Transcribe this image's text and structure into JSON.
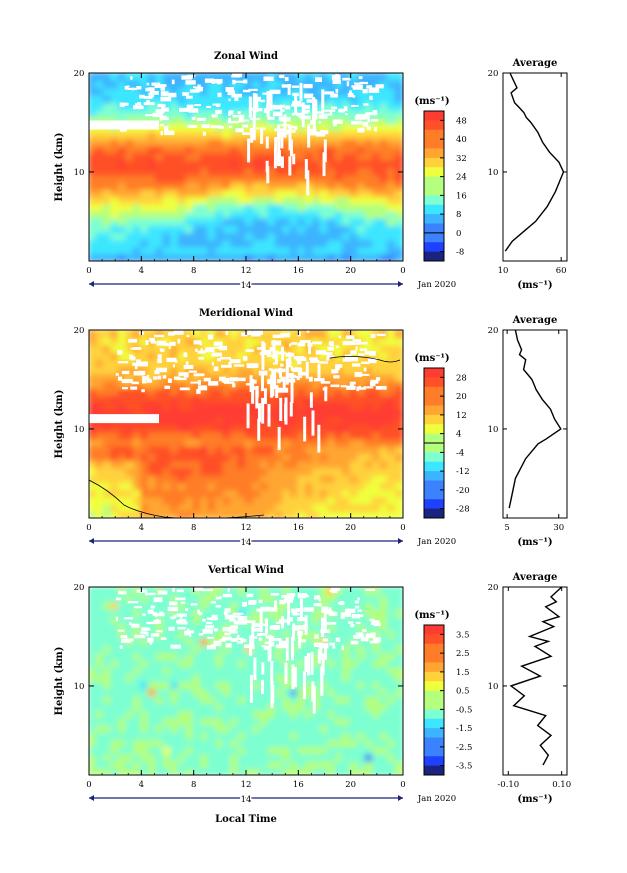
{
  "colors": {
    "palette": [
      "#1a237e",
      "#1e40ff",
      "#3c82ff",
      "#3cb4ff",
      "#3ce6ff",
      "#7dffd2",
      "#b4ff7d",
      "#f0ff3c",
      "#ffd23c",
      "#ffa532",
      "#ff7d28",
      "#ff5028",
      "#ff3c32"
    ],
    "missing": "#ffffff",
    "line": "#000000",
    "timeline": "#1a237e"
  },
  "common": {
    "ylabel": "Height (km)",
    "yticks": [
      "20",
      "10"
    ],
    "xticks": [
      "0",
      "4",
      "8",
      "12",
      "16",
      "20",
      "0"
    ],
    "day_label": "14",
    "date_label": "Jan 2020",
    "unit_label": "(ms⁻¹)",
    "avg_title": "Average",
    "avg_xunit": "(ms⁻¹)",
    "xlabel": "Local Time"
  },
  "chart_data": [
    {
      "type": "heatmap",
      "title": "Zonal Wind",
      "xlabel": "",
      "ylabel": "Height (km)",
      "xlim": [
        0,
        24
      ],
      "ylim": [
        1,
        20
      ],
      "colorbar_ticks": [
        "48",
        "40",
        "32",
        "24",
        "16",
        "8",
        "0",
        "-8"
      ],
      "colorbar_range": [
        -12,
        52
      ],
      "profile": {
        "type": "line",
        "title": "Average",
        "xlim": [
          10,
          65
        ],
        "xticks": [
          "10",
          "60"
        ],
        "x": [
          12,
          18,
          28,
          38,
          48,
          55,
          62,
          58,
          50,
          44,
          40,
          34,
          30,
          28,
          24,
          20,
          17,
          22,
          18,
          16
        ],
        "y": [
          2,
          3,
          4,
          5,
          6.5,
          8,
          10,
          11,
          12,
          13,
          14,
          15,
          15.5,
          16,
          16.5,
          17,
          18,
          18.5,
          19.5,
          20
        ]
      }
    },
    {
      "type": "heatmap",
      "title": "Meridional Wind",
      "xlabel": "",
      "ylabel": "Height (km)",
      "xlim": [
        0,
        24
      ],
      "ylim": [
        1,
        20
      ],
      "colorbar_ticks": [
        "28",
        "20",
        "12",
        "4",
        "-4",
        "-12",
        "-20",
        "-28"
      ],
      "colorbar_range": [
        -32,
        32
      ],
      "profile": {
        "type": "line",
        "title": "Average",
        "xlim": [
          3,
          34
        ],
        "xticks": [
          "5",
          "30"
        ],
        "x": [
          6,
          7,
          9,
          14,
          20,
          24,
          31,
          28,
          26,
          22,
          19,
          18,
          17,
          15,
          13,
          14,
          11,
          12,
          10,
          9
        ],
        "y": [
          2,
          3,
          5,
          7,
          8.5,
          9,
          10,
          11,
          12,
          13,
          14,
          14.5,
          15,
          15.5,
          16,
          17,
          17.5,
          18,
          19,
          20
        ]
      }
    },
    {
      "type": "heatmap",
      "title": "Vertical Wind",
      "xlabel": "Local Time",
      "ylabel": "Height (km)",
      "xlim": [
        0,
        24
      ],
      "ylim": [
        1,
        20
      ],
      "colorbar_ticks": [
        "3.5",
        "2.5",
        "1.5",
        "0.5",
        "-0.5",
        "-1.5",
        "-2.5",
        "-3.5"
      ],
      "colorbar_range": [
        -4,
        4
      ],
      "profile": {
        "type": "line",
        "title": "Average",
        "xlim": [
          -0.12,
          0.12
        ],
        "xticks": [
          "-0.10",
          "0.10"
        ],
        "x": [
          0.03,
          0.05,
          0.02,
          0.06,
          0.01,
          0.04,
          -0.08,
          -0.04,
          -0.09,
          0.02,
          -0.05,
          0.06,
          0.0,
          0.05,
          -0.02,
          0.07,
          0.03,
          0.09,
          0.04,
          0.08,
          0.06,
          0.1
        ],
        "y": [
          2,
          3,
          4,
          5,
          6,
          7,
          8,
          9,
          10,
          11,
          12,
          13,
          14,
          14.5,
          15,
          16,
          16.5,
          17,
          18,
          18.5,
          19,
          20
        ]
      }
    }
  ]
}
